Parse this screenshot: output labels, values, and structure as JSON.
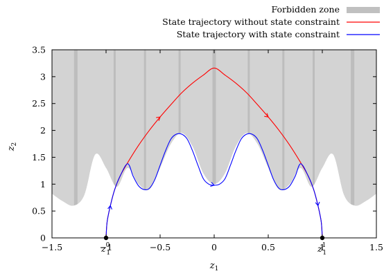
{
  "chart_data": {
    "type": "line",
    "xlabel": "z",
    "xlabel_sub": "1",
    "ylabel": "z",
    "ylabel_sub": "2",
    "xlim": [
      -1.5,
      1.5
    ],
    "ylim": [
      0,
      3.5
    ],
    "xticks": [
      -1.5,
      -1,
      -0.5,
      0,
      0.5,
      1,
      1.5
    ],
    "xtick_labels": [
      "−1.5",
      "−1",
      "−0.5",
      "0",
      "0.5",
      "1",
      "1.5"
    ],
    "yticks": [
      0,
      0.5,
      1,
      1.5,
      2,
      2.5,
      3,
      3.5
    ],
    "ytick_labels": [
      "0",
      "0.5",
      "1",
      "1.5",
      "2",
      "2.5",
      "3",
      "3.5"
    ],
    "grid": false,
    "legend_position": "top-right",
    "forbidden_zone_lower_boundary": {
      "x": [
        -1.5,
        -1.4,
        -1.3,
        -1.2,
        -1.1,
        -1.0,
        -0.9,
        -0.8,
        -0.7,
        -0.6,
        -0.5,
        -0.4,
        -0.3,
        -0.2,
        -0.1,
        0.0,
        0.1,
        0.2,
        0.3,
        0.4,
        0.5,
        0.6,
        0.7,
        0.8,
        0.9,
        1.0,
        1.1,
        1.2,
        1.3,
        1.4,
        1.5
      ],
      "y": [
        0.82,
        0.68,
        0.6,
        0.8,
        1.55,
        1.3,
        0.95,
        1.3,
        1.0,
        0.9,
        1.3,
        1.75,
        1.95,
        1.7,
        1.2,
        1.0,
        1.2,
        1.7,
        1.95,
        1.75,
        1.3,
        0.9,
        1.0,
        1.3,
        0.95,
        1.3,
        1.55,
        0.8,
        0.6,
        0.68,
        0.82
      ]
    },
    "series": [
      {
        "name": "Forbidden zone",
        "color": "#c0c0c0",
        "style": "band"
      },
      {
        "name": "State trajectory without state constraint",
        "color": "#ff0000",
        "x": [
          -1.0,
          -0.99,
          -0.96,
          -0.92,
          -0.87,
          -0.8,
          -0.7,
          -0.6,
          -0.5,
          -0.4,
          -0.3,
          -0.2,
          -0.1,
          0.0,
          0.1,
          0.2,
          0.3,
          0.4,
          0.5,
          0.6,
          0.7,
          0.8,
          0.87,
          0.92,
          0.96,
          0.99,
          1.0
        ],
        "y": [
          0.0,
          0.3,
          0.6,
          0.9,
          1.15,
          1.4,
          1.72,
          2.0,
          2.25,
          2.48,
          2.7,
          2.88,
          3.03,
          3.16,
          3.03,
          2.88,
          2.7,
          2.48,
          2.25,
          2.0,
          1.72,
          1.4,
          1.15,
          0.9,
          0.6,
          0.3,
          0.0
        ]
      },
      {
        "name": "State trajectory with state constraint",
        "color": "#0000ff",
        "x": [
          -1.0,
          -0.99,
          -0.96,
          -0.92,
          -0.87,
          -0.8,
          -0.75,
          -0.7,
          -0.65,
          -0.6,
          -0.55,
          -0.5,
          -0.45,
          -0.4,
          -0.35,
          -0.3,
          -0.25,
          -0.2,
          -0.15,
          -0.1,
          -0.05,
          0.0,
          0.05,
          0.1,
          0.15,
          0.2,
          0.25,
          0.3,
          0.35,
          0.4,
          0.45,
          0.5,
          0.55,
          0.6,
          0.65,
          0.7,
          0.75,
          0.8,
          0.87,
          0.92,
          0.96,
          0.99,
          1.0
        ],
        "y": [
          0.0,
          0.3,
          0.6,
          0.9,
          1.15,
          1.38,
          1.15,
          0.97,
          0.9,
          0.92,
          1.08,
          1.35,
          1.62,
          1.84,
          1.93,
          1.93,
          1.84,
          1.62,
          1.35,
          1.1,
          1.0,
          0.98,
          1.0,
          1.1,
          1.35,
          1.62,
          1.84,
          1.93,
          1.93,
          1.84,
          1.62,
          1.35,
          1.08,
          0.92,
          0.9,
          0.97,
          1.15,
          1.38,
          1.15,
          0.9,
          0.6,
          0.3,
          0.0
        ]
      }
    ],
    "annotations": [
      {
        "label": "z",
        "sub": "1",
        "sup": "0",
        "x": -1.0,
        "y": 0
      },
      {
        "label": "z",
        "sub": "1",
        "sup": "1",
        "x": 1.0,
        "y": 0
      }
    ]
  }
}
